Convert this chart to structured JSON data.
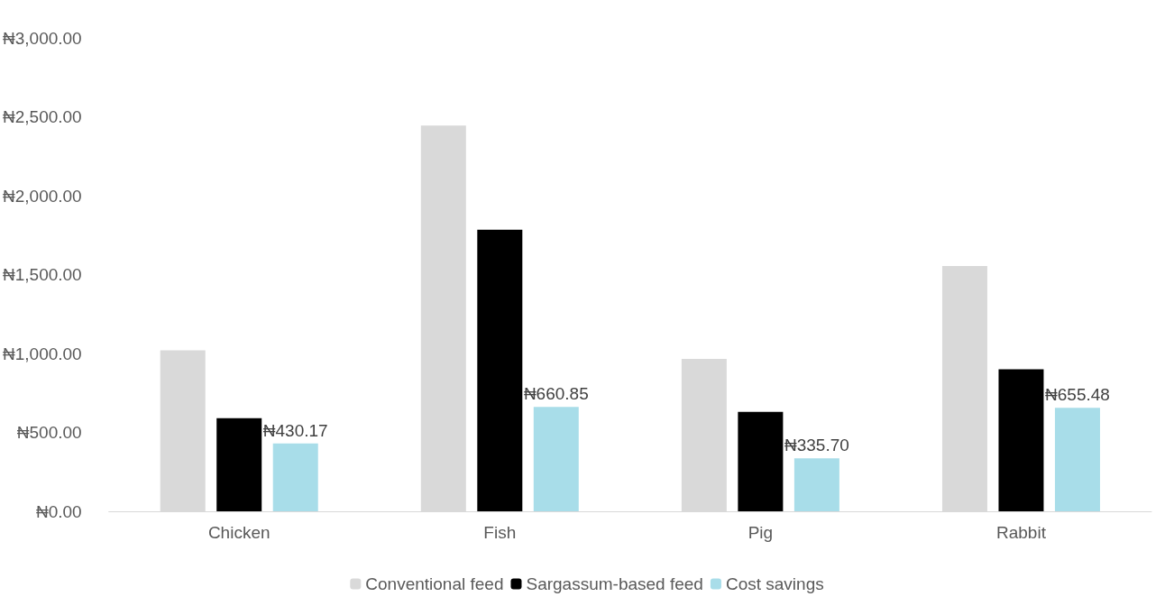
{
  "chart_data": {
    "type": "bar",
    "categories": [
      "Chicken",
      "Fish",
      "Pig",
      "Rabbit"
    ],
    "series": [
      {
        "name": "Conventional feed",
        "color": "#d9d9d9",
        "values": [
          1020,
          2445,
          966,
          1555
        ]
      },
      {
        "name": "Sargassum-based feed",
        "color": "#000000",
        "values": [
          590,
          1784,
          630,
          900
        ]
      },
      {
        "name": "Cost savings",
        "color": "#a8dde9",
        "values": [
          430.17,
          660.85,
          335.7,
          655.48
        ],
        "value_labels": [
          "₦430.17",
          "₦660.85",
          "₦335.70",
          "₦655.48"
        ]
      }
    ],
    "ylim": [
      0,
      3000
    ],
    "yticks": [
      {
        "value": 0,
        "label": "₦0.00"
      },
      {
        "value": 500,
        "label": "₦500.00"
      },
      {
        "value": 1000,
        "label": "₦1,000.00"
      },
      {
        "value": 1500,
        "label": "₦1,500.00"
      },
      {
        "value": 2000,
        "label": "₦2,000.00"
      },
      {
        "value": 2500,
        "label": "₦2,500.00"
      },
      {
        "value": 3000,
        "label": "₦3,000.00"
      }
    ],
    "grid": false,
    "legend": "bottom"
  }
}
